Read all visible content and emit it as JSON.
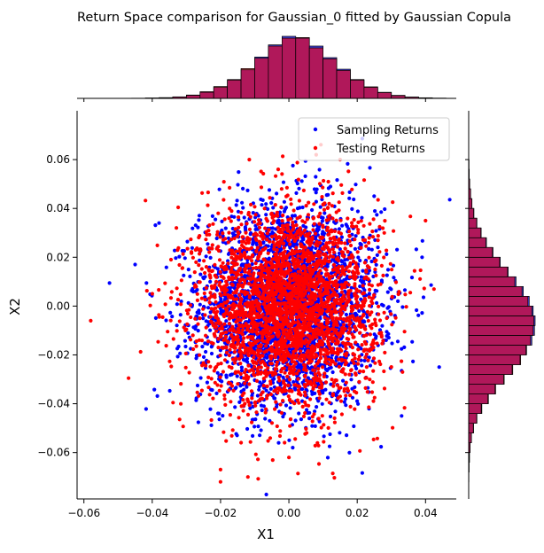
{
  "chart_data": {
    "type": "scatter",
    "title": "Return Space comparison for Gaussian_0 fitted by Gaussian Copula",
    "xlabel": "X1",
    "ylabel": "X2",
    "xlim": [
      -0.062,
      0.049
    ],
    "ylim": [
      -0.079,
      0.08
    ],
    "xticks": [
      -0.06,
      -0.04,
      -0.02,
      0.0,
      0.02,
      0.04
    ],
    "xtick_labels": [
      "−0.06",
      "−0.04",
      "−0.02",
      "0.00",
      "0.02",
      "0.04"
    ],
    "yticks": [
      -0.06,
      -0.04,
      -0.02,
      0.0,
      0.02,
      0.04,
      0.06
    ],
    "ytick_labels": [
      "−0.06",
      "−0.04",
      "−0.02",
      "0.00",
      "0.02",
      "0.04",
      "0.06"
    ],
    "grid": false,
    "legend_position": "top-right",
    "marginals": "histograms on top (X1) and right (X2)",
    "series": [
      {
        "name": "Sampling Returns",
        "color": "#0000ff",
        "hist_color": "#4444dd",
        "distribution": "bivariate normal",
        "mean": [
          0.0,
          0.0
        ],
        "std": [
          0.013,
          0.02
        ],
        "approx_points": 3000,
        "extremes": [
          [
            -0.045,
            0.017
          ],
          [
            0.044,
            -0.025
          ],
          [
            0.039,
            0.02
          ],
          [
            -0.038,
            0.034
          ],
          [
            0.033,
            -0.045
          ]
        ]
      },
      {
        "name": "Testing Returns",
        "color": "#ff0000",
        "hist_color": "#ee5555",
        "distribution": "bivariate normal",
        "mean": [
          0.0,
          0.0
        ],
        "std": [
          0.013,
          0.02
        ],
        "approx_points": 3000,
        "extremes": [
          [
            -0.058,
            -0.006
          ],
          [
            -0.02,
            -0.072
          ],
          [
            -0.02,
            -0.067
          ],
          [
            -0.012,
            -0.07
          ],
          [
            0.0,
            -0.062
          ],
          [
            0.015,
            0.06
          ],
          [
            0.008,
            0.062
          ],
          [
            0.04,
            0.035
          ]
        ]
      }
    ],
    "overlap_color": "#b0185a",
    "x_hist_bins": {
      "edges": [
        -0.046,
        -0.042,
        -0.038,
        -0.034,
        -0.03,
        -0.026,
        -0.022,
        -0.018,
        -0.014,
        -0.01,
        -0.006,
        -0.002,
        0.002,
        0.006,
        0.01,
        0.014,
        0.018,
        0.022,
        0.026,
        0.03,
        0.034,
        0.038,
        0.042,
        0.046
      ],
      "sampling_density": [
        0.02,
        0.05,
        0.1,
        0.22,
        0.5,
        1.0,
        1.8,
        3.0,
        4.7,
        6.8,
        8.8,
        10.2,
        9.9,
        8.6,
        6.7,
        4.8,
        3.0,
        1.8,
        0.95,
        0.45,
        0.2,
        0.08,
        0.03
      ],
      "testing_density": [
        0.03,
        0.06,
        0.12,
        0.25,
        0.55,
        1.1,
        1.95,
        3.1,
        4.9,
        6.6,
        8.6,
        9.9,
        10.0,
        8.3,
        6.5,
        4.6,
        3.1,
        1.9,
        1.0,
        0.5,
        0.22,
        0.1,
        0.04
      ]
    },
    "y_hist_bins": {
      "edges": [
        -0.072,
        -0.068,
        -0.064,
        -0.06,
        -0.056,
        -0.052,
        -0.048,
        -0.044,
        -0.04,
        -0.036,
        -0.032,
        -0.028,
        -0.024,
        -0.02,
        -0.016,
        -0.012,
        -0.008,
        -0.004,
        0.0,
        0.004,
        0.008,
        0.012,
        0.016,
        0.02,
        0.024,
        0.028,
        0.032,
        0.036,
        0.04,
        0.044,
        0.048,
        0.052,
        0.056,
        0.06,
        0.064
      ],
      "sampling_density": [
        0.02,
        0.05,
        0.1,
        0.2,
        0.4,
        0.7,
        1.2,
        1.9,
        2.9,
        4.0,
        5.3,
        6.6,
        7.8,
        8.8,
        9.6,
        10.0,
        10.1,
        9.8,
        9.2,
        8.3,
        7.2,
        6.0,
        4.8,
        3.7,
        2.7,
        1.9,
        1.25,
        0.8,
        0.5,
        0.3,
        0.16,
        0.08,
        0.04,
        0.02
      ],
      "testing_density": [
        0.03,
        0.06,
        0.12,
        0.22,
        0.42,
        0.75,
        1.25,
        2.0,
        3.0,
        4.1,
        5.4,
        6.7,
        7.9,
        8.7,
        9.4,
        9.8,
        9.9,
        9.6,
        9.0,
        8.1,
        7.0,
        5.9,
        4.7,
        3.6,
        2.6,
        1.85,
        1.2,
        0.75,
        0.48,
        0.28,
        0.15,
        0.07,
        0.04,
        0.02
      ]
    }
  }
}
